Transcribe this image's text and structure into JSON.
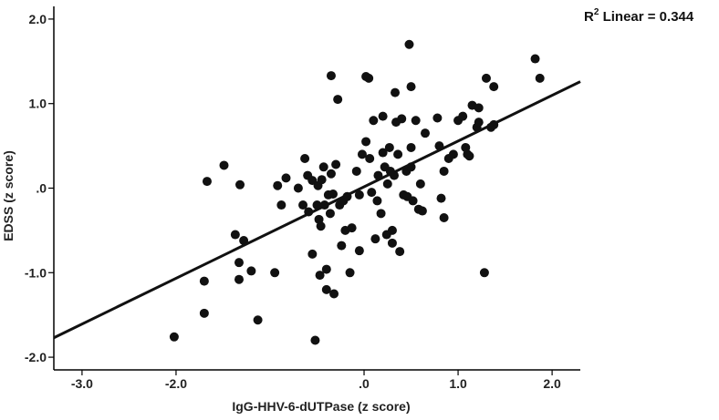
{
  "chart_data": {
    "type": "scatter",
    "title": "",
    "xlabel": "IgG-HHV-6-dUTPase (z score)",
    "ylabel": "EDSS (z score)",
    "xlim": [
      -3.3,
      2.3
    ],
    "ylim": [
      -2.15,
      2.15
    ],
    "x_ticks": [
      -3.0,
      -2.0,
      0.0,
      1.0,
      2.0
    ],
    "x_tick_labels": [
      "-3.0",
      "-2.0",
      ".0",
      "1.0",
      "2.0"
    ],
    "y_ticks": [
      2.0,
      1.0,
      0.0,
      -1.0,
      -2.0
    ],
    "y_tick_labels": [
      "2.0",
      "1.0",
      ".0",
      "-1.0",
      "-2.0"
    ],
    "grid": false,
    "annotation": {
      "prefix": "R",
      "superscript": "2",
      "text": " Linear = 0.344"
    },
    "fit_line": {
      "x": [
        -3.3,
        2.3
      ],
      "y": [
        -1.77,
        1.26
      ]
    },
    "points": [
      [
        -2.02,
        -1.76
      ],
      [
        -1.7,
        -1.1
      ],
      [
        -1.7,
        -1.48
      ],
      [
        -1.67,
        0.08
      ],
      [
        -1.49,
        0.27
      ],
      [
        -1.32,
        0.04
      ],
      [
        -1.28,
        -0.62
      ],
      [
        -1.13,
        -1.56
      ],
      [
        -1.2,
        -0.98
      ],
      [
        -1.37,
        -0.55
      ],
      [
        -1.33,
        -0.88
      ],
      [
        -1.33,
        -1.08
      ],
      [
        -0.95,
        -1.0
      ],
      [
        -0.92,
        0.03
      ],
      [
        -0.88,
        -0.2
      ],
      [
        -0.83,
        0.12
      ],
      [
        -0.7,
        0.0
      ],
      [
        -0.65,
        -0.2
      ],
      [
        -0.63,
        0.35
      ],
      [
        -0.6,
        0.15
      ],
      [
        -0.59,
        -0.28
      ],
      [
        -0.55,
        -0.78
      ],
      [
        -0.55,
        0.09
      ],
      [
        -0.5,
        -0.2
      ],
      [
        -0.49,
        0.03
      ],
      [
        -0.48,
        -0.37
      ],
      [
        -0.47,
        -1.03
      ],
      [
        -0.46,
        -0.45
      ],
      [
        -0.45,
        0.1
      ],
      [
        -0.43,
        0.25
      ],
      [
        -0.42,
        -0.2
      ],
      [
        -0.4,
        -0.96
      ],
      [
        -0.4,
        -1.2
      ],
      [
        -0.38,
        -0.08
      ],
      [
        -0.36,
        -0.3
      ],
      [
        -0.35,
        0.17
      ],
      [
        -0.33,
        -0.07
      ],
      [
        -0.35,
        1.33
      ],
      [
        -0.32,
        -1.25
      ],
      [
        -0.3,
        0.28
      ],
      [
        -0.28,
        1.05
      ],
      [
        -0.26,
        -0.2
      ],
      [
        -0.24,
        -0.68
      ],
      [
        -0.22,
        -0.15
      ],
      [
        -0.2,
        -0.5
      ],
      [
        -0.18,
        -0.1
      ],
      [
        -0.15,
        -1.0
      ],
      [
        -0.13,
        -0.47
      ],
      [
        -0.08,
        0.2
      ],
      [
        -0.05,
        -0.74
      ],
      [
        -0.05,
        -0.08
      ],
      [
        -0.02,
        0.4
      ],
      [
        0.02,
        0.55
      ],
      [
        0.02,
        1.32
      ],
      [
        0.05,
        1.3
      ],
      [
        0.06,
        0.35
      ],
      [
        0.08,
        -0.05
      ],
      [
        0.1,
        0.8
      ],
      [
        0.12,
        -0.6
      ],
      [
        0.14,
        -0.15
      ],
      [
        0.15,
        0.15
      ],
      [
        0.18,
        -0.3
      ],
      [
        0.2,
        0.42
      ],
      [
        0.2,
        0.85
      ],
      [
        0.22,
        0.25
      ],
      [
        0.24,
        -0.55
      ],
      [
        0.25,
        0.05
      ],
      [
        0.27,
        0.48
      ],
      [
        0.28,
        0.2
      ],
      [
        0.3,
        -0.5
      ],
      [
        0.3,
        -0.65
      ],
      [
        0.32,
        0.15
      ],
      [
        0.33,
        1.13
      ],
      [
        0.34,
        0.78
      ],
      [
        0.36,
        0.4
      ],
      [
        0.38,
        -0.75
      ],
      [
        0.4,
        0.82
      ],
      [
        0.42,
        -0.08
      ],
      [
        0.45,
        0.2
      ],
      [
        0.46,
        -0.1
      ],
      [
        0.48,
        1.7
      ],
      [
        0.5,
        0.48
      ],
      [
        0.5,
        1.2
      ],
      [
        0.5,
        0.25
      ],
      [
        0.52,
        -0.15
      ],
      [
        0.55,
        0.8
      ],
      [
        0.58,
        -0.25
      ],
      [
        0.6,
        0.05
      ],
      [
        0.62,
        -0.27
      ],
      [
        0.65,
        0.65
      ],
      [
        0.78,
        0.83
      ],
      [
        0.8,
        0.5
      ],
      [
        0.82,
        -0.12
      ],
      [
        0.85,
        0.2
      ],
      [
        0.85,
        -0.35
      ],
      [
        0.9,
        0.35
      ],
      [
        0.95,
        0.4
      ],
      [
        1.0,
        0.8
      ],
      [
        1.05,
        0.85
      ],
      [
        1.08,
        0.48
      ],
      [
        1.1,
        0.4
      ],
      [
        1.12,
        0.38
      ],
      [
        1.15,
        0.98
      ],
      [
        1.2,
        0.72
      ],
      [
        1.22,
        0.95
      ],
      [
        1.22,
        0.78
      ],
      [
        1.28,
        -1.0
      ],
      [
        1.35,
        0.72
      ],
      [
        1.38,
        0.75
      ],
      [
        1.38,
        1.2
      ],
      [
        1.3,
        1.3
      ],
      [
        1.82,
        1.53
      ],
      [
        1.87,
        1.3
      ],
      [
        -0.52,
        -1.8
      ]
    ],
    "marker_color": "#111111",
    "line_color": "#111111"
  }
}
